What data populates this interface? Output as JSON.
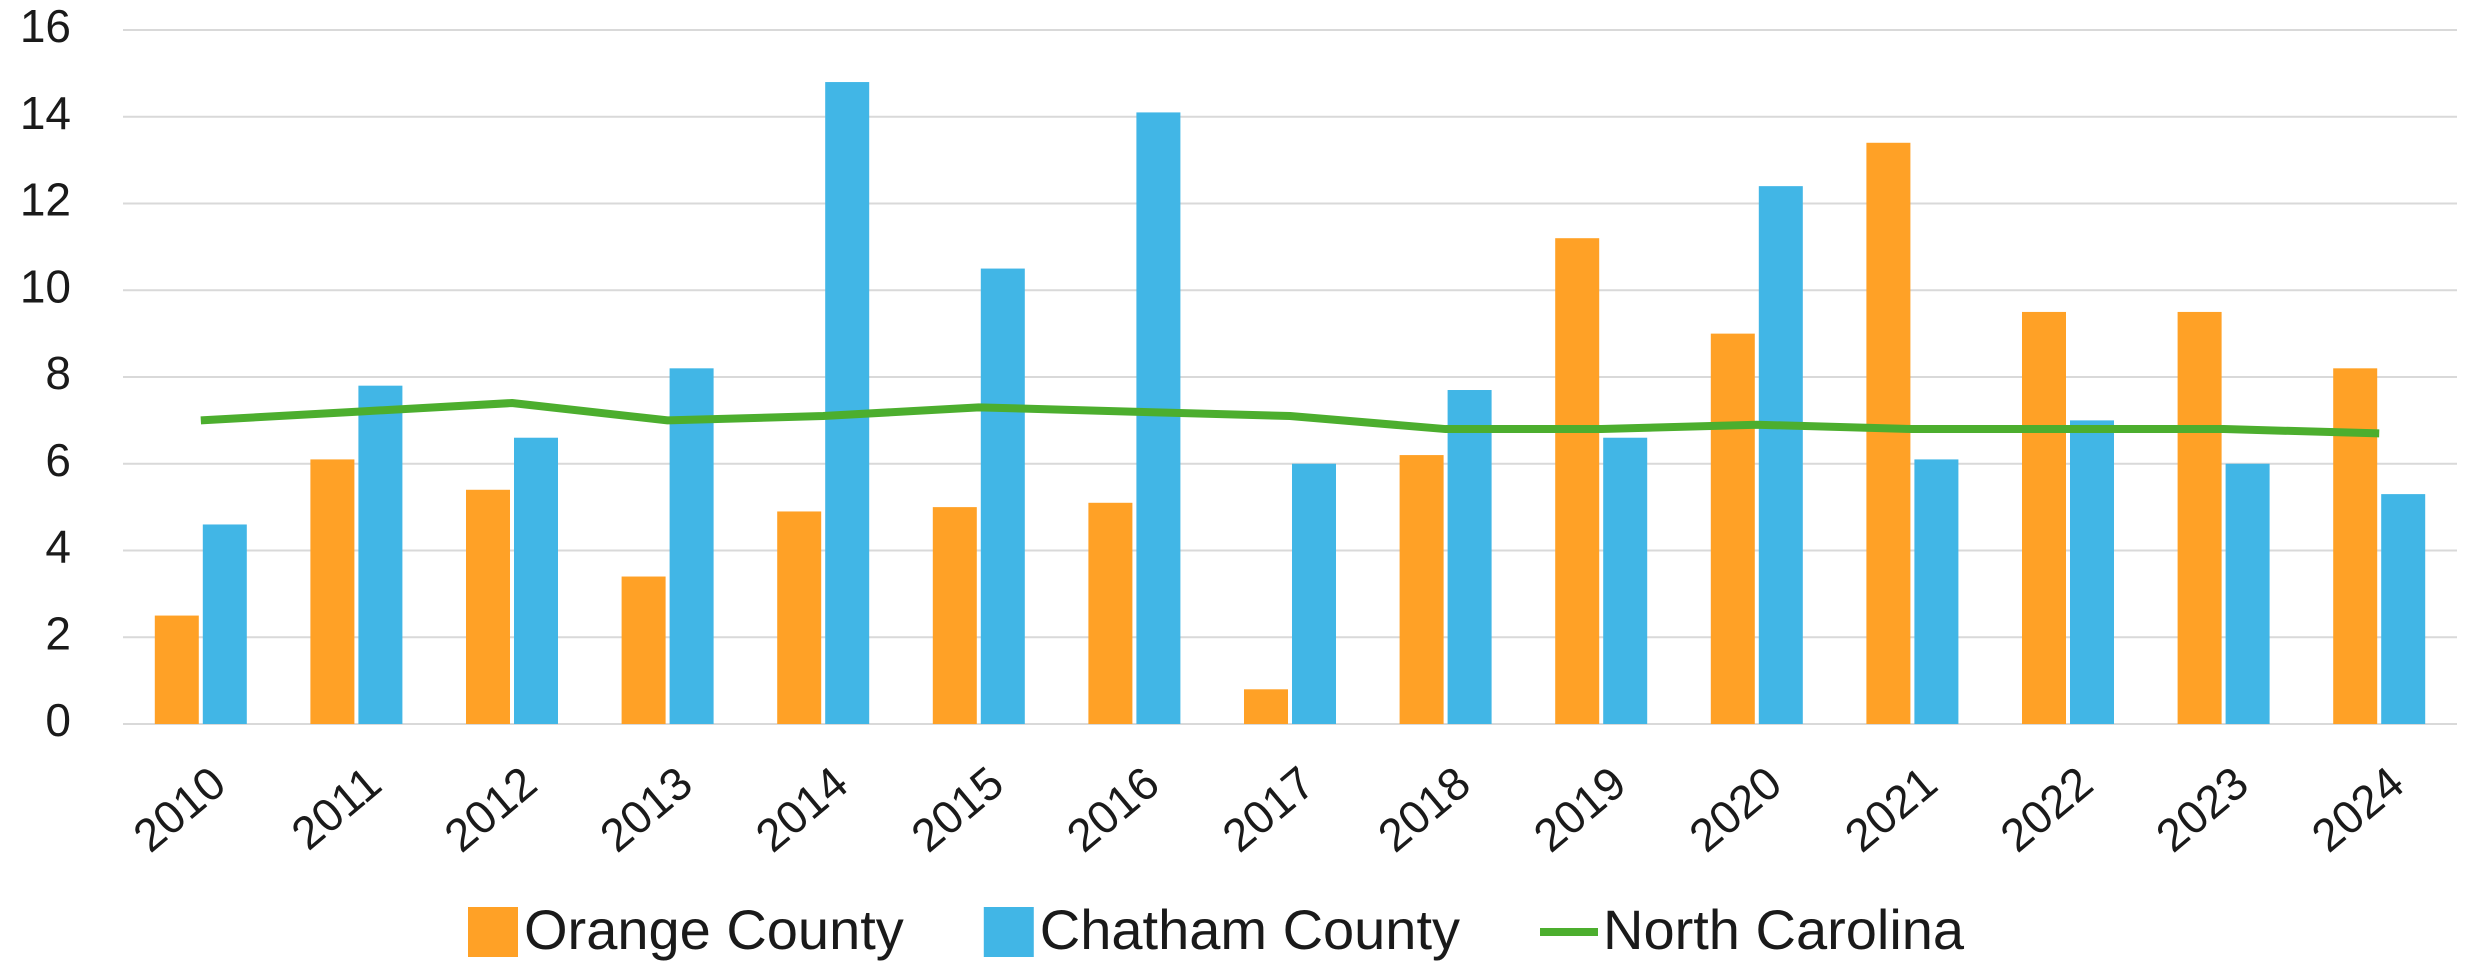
{
  "chart_data": {
    "type": "bar",
    "categories": [
      "2010",
      "2011",
      "2012",
      "2013",
      "2014",
      "2015",
      "2016",
      "2017",
      "2018",
      "2019",
      "2020",
      "2021",
      "2022",
      "2023",
      "2024"
    ],
    "series": [
      {
        "name": "Orange County",
        "color": "#ffa126",
        "values": [
          2.5,
          6.1,
          5.4,
          3.4,
          4.9,
          5.0,
          5.1,
          0.8,
          6.2,
          11.2,
          9.0,
          13.4,
          9.5,
          9.5,
          8.2
        ]
      },
      {
        "name": "Chatham County",
        "color": "#41b6e6",
        "values": [
          4.6,
          7.8,
          6.6,
          8.2,
          14.8,
          10.5,
          14.1,
          6.0,
          7.7,
          6.6,
          12.4,
          6.1,
          7.0,
          6.0,
          5.3
        ]
      },
      {
        "name": "North Carolina",
        "color": "#4cae2e",
        "type": "line",
        "values": [
          7.0,
          7.2,
          7.4,
          7.0,
          7.1,
          7.3,
          7.2,
          7.1,
          6.8,
          6.8,
          6.9,
          6.8,
          6.8,
          6.8,
          6.7
        ]
      }
    ],
    "ylim": [
      0,
      16
    ],
    "yticks": [
      0,
      2,
      4,
      6,
      8,
      10,
      12,
      14,
      16
    ],
    "grid": true,
    "legend": "bottom"
  }
}
